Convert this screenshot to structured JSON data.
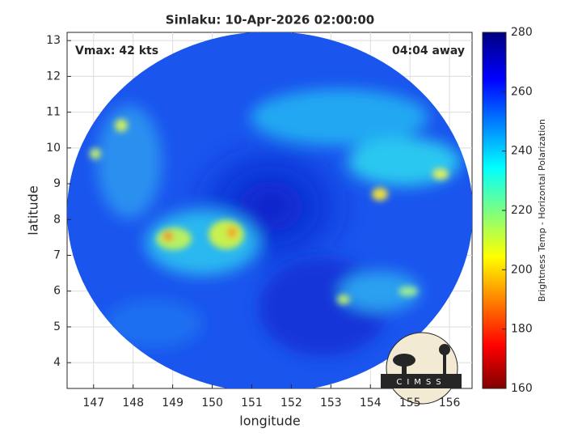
{
  "chart_data": {
    "type": "map",
    "title": "Sinlaku: 10-Apr-2026 02:00:00",
    "annotations": [
      "Vmax: 42 kts",
      "04:04 away"
    ],
    "xlabel": "longitude",
    "ylabel": "latitude",
    "xlim": [
      146.33,
      156.57
    ],
    "xticks": [
      147,
      148,
      149,
      150,
      151,
      152,
      153,
      154,
      155,
      156
    ],
    "ylim": [
      3.28,
      13.23
    ],
    "yticks": [
      4,
      5,
      6,
      7,
      8,
      9,
      10,
      11,
      12,
      13
    ],
    "grid": true,
    "colorbar": {
      "label": "Brightness Temp - Horizontal Polarization",
      "clim": [
        160,
        280
      ],
      "ticks": [
        160,
        180,
        200,
        220,
        240,
        260,
        280
      ],
      "colormap": "jet"
    },
    "logo": "CIMSS"
  }
}
